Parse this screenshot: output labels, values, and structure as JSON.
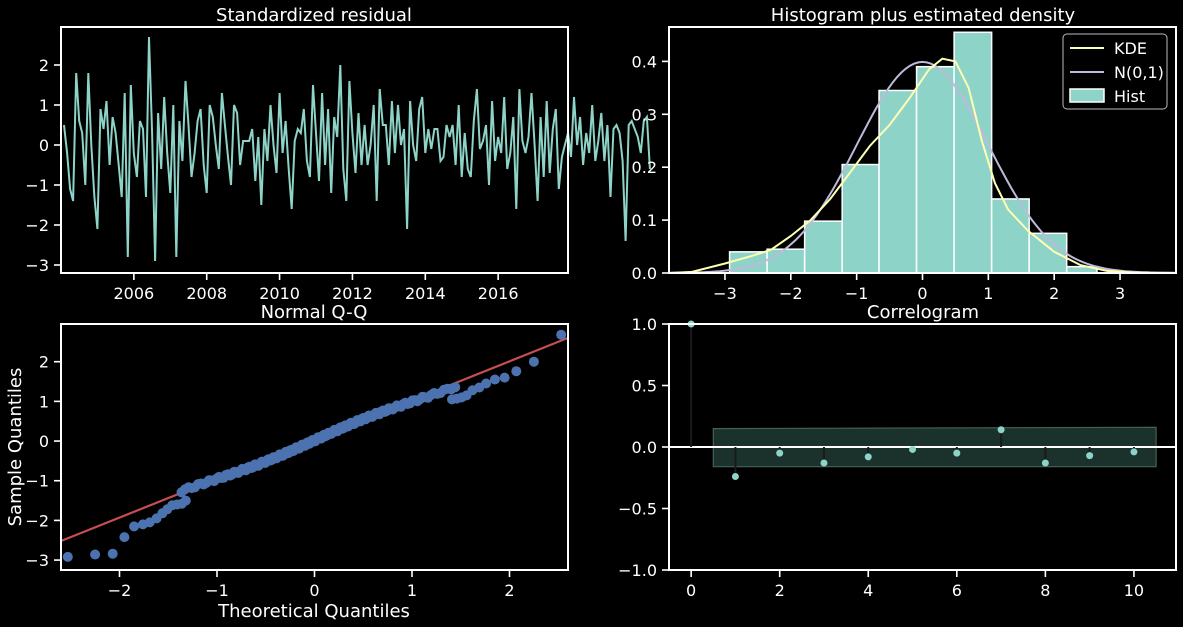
{
  "theme": {
    "background": "#000000",
    "axes_color": "#ffffff",
    "residual_color": "#8dd3c7",
    "hist_color": "#8dd3c7",
    "kde_color": "#ffffb3",
    "normal_color": "#bebada",
    "qq_point_color": "#4c72b0",
    "qq_line_color": "#c44e52",
    "confint_color": "#1f3a34",
    "acf_stem_color": "#1a1a1a",
    "acf_point_color": "#8dd3c7"
  },
  "chart_data": [
    {
      "type": "line",
      "title": "Standardized residual",
      "xlabel": "",
      "ylabel": "",
      "xlim": [
        2004.0,
        2017.917
      ],
      "ylim": [
        -3.2,
        2.95
      ],
      "xticks": [
        2006,
        2008,
        2010,
        2012,
        2014,
        2016
      ],
      "yticks": [
        -3,
        -2,
        -1,
        0,
        1,
        2
      ],
      "x_start": 2004.083,
      "x_step": 0.08333,
      "values": [
        0.5,
        -0.2,
        -1.1,
        -1.4,
        1.8,
        0.6,
        0.3,
        -1.0,
        1.8,
        0.0,
        -1.3,
        -2.1,
        0.9,
        0.4,
        1.1,
        -0.5,
        0.7,
        0.3,
        -0.5,
        -1.3,
        1.3,
        -2.8,
        1.5,
        -0.2,
        -0.8,
        0.6,
        0.4,
        -1.3,
        2.7,
        0.3,
        -2.9,
        0.8,
        -0.6,
        1.2,
        -0.2,
        -1.2,
        1.0,
        -2.8,
        0.6,
        -0.4,
        1.6,
        0.5,
        -0.8,
        -0.2,
        0.6,
        0.9,
        -0.5,
        -1.2,
        1.0,
        0.7,
        0.0,
        -0.6,
        1.3,
        0.5,
        -0.3,
        -1.0,
        1.0,
        0.8,
        -0.5,
        0.1,
        0.1,
        0.1,
        0.4,
        -0.9,
        0.2,
        -1.5,
        0.4,
        -0.4,
        1.0,
        0.0,
        -0.7,
        1.3,
        -0.2,
        0.6,
        -0.6,
        -1.6,
        0.1,
        0.4,
        0.3,
        0.9,
        -0.4,
        -0.8,
        1.5,
        0.3,
        -0.9,
        1.3,
        -0.5,
        0.9,
        -1.2,
        0.7,
        0.2,
        2.0,
        -0.6,
        -1.4,
        1.6,
        0.3,
        -0.7,
        0.8,
        -0.5,
        0.5,
        -0.5,
        0.0,
        1.0,
        -1.4,
        1.4,
        0.5,
        0.5,
        -0.5,
        1.1,
        -0.2,
        1.0,
        0.0,
        0.4,
        -2.1,
        1.1,
        0.0,
        -0.4,
        0.9,
        1.2,
        -0.2,
        0.4,
        -0.1,
        0.4,
        0.4,
        -0.4,
        -0.3,
        0.5,
        0.2,
        0.5,
        -0.5,
        1.0,
        -0.8,
        0.3,
        -0.6,
        -0.8,
        0.6,
        1.4,
        -0.1,
        0.1,
        0.5,
        -1.0,
        1.1,
        -0.4,
        0.2,
        -0.2,
        1.2,
        -0.6,
        -0.2,
        0.7,
        -1.6,
        1.4,
        0.1,
        -0.2,
        0.2,
        1.3,
        0.0,
        -1.4,
        0.7,
        -0.8,
        1.1,
        -0.7,
        0.4,
        0.9,
        -1.1,
        -0.3,
        0.0,
        0.3,
        -0.3,
        1.2,
        0.0,
        0.7,
        -0.5,
        0.3,
        -0.2,
        1.0,
        -0.4,
        0.1,
        0.8,
        -0.4,
        0.5,
        -1.3,
        0.4,
        0.5,
        0.3,
        -0.4,
        -2.4,
        0.5,
        0.6,
        0.4,
        0.2,
        -0.2,
        0.6,
        0.7,
        -0.6
      ]
    },
    {
      "type": "histogram",
      "title": "Histogram plus estimated density",
      "xlim": [
        -3.85,
        3.85
      ],
      "ylim": [
        0,
        0.465
      ],
      "xticks": [
        -3,
        -2,
        -1,
        0,
        1,
        2,
        3
      ],
      "yticks": [
        0.0,
        0.1,
        0.2,
        0.3,
        0.4
      ],
      "ytick_labels": [
        "0.0",
        "0.1",
        "0.2",
        "0.3",
        "0.4"
      ],
      "bin_edges": [
        -2.93,
        -2.36,
        -1.79,
        -1.22,
        -0.66,
        -0.09,
        0.48,
        1.05,
        1.62,
        2.19,
        2.65
      ],
      "densities": [
        0.04,
        0.045,
        0.098,
        0.205,
        0.345,
        0.39,
        0.455,
        0.14,
        0.075,
        0.012
      ],
      "kde": {
        "x": [
          -3.85,
          -3.5,
          -3.0,
          -2.6,
          -2.3,
          -2.0,
          -1.7,
          -1.4,
          -1.1,
          -0.8,
          -0.5,
          -0.2,
          0.1,
          0.3,
          0.5,
          0.7,
          0.9,
          1.1,
          1.3,
          1.6,
          2.0,
          2.4,
          2.8,
          3.2,
          3.85
        ],
        "y": [
          0.0,
          0.002,
          0.018,
          0.032,
          0.044,
          0.07,
          0.1,
          0.14,
          0.19,
          0.24,
          0.28,
          0.33,
          0.385,
          0.405,
          0.4,
          0.35,
          0.25,
          0.17,
          0.12,
          0.08,
          0.04,
          0.015,
          0.004,
          0.001,
          0.0
        ]
      },
      "legend": [
        "KDE",
        "N(0,1)",
        "Hist"
      ],
      "legend_placement": "top-right"
    },
    {
      "type": "scatter",
      "title": "Normal Q-Q",
      "xlabel": "Theoretical Quantiles",
      "ylabel": "Sample Quantiles",
      "xlim": [
        -2.6,
        2.6
      ],
      "ylim": [
        -3.25,
        2.95
      ],
      "xticks": [
        -2,
        -1,
        0,
        1,
        2
      ],
      "yticks": [
        -3,
        -2,
        -1,
        0,
        1,
        2
      ],
      "n_points": 168,
      "low_tail": [
        [
          -2.53,
          -2.92
        ],
        [
          -2.25,
          -2.86
        ],
        [
          -2.07,
          -2.84
        ],
        [
          -1.95,
          -2.42
        ],
        [
          -1.85,
          -2.15
        ],
        [
          -1.76,
          -2.1
        ],
        [
          -1.69,
          -2.05
        ],
        [
          -1.62,
          -1.95
        ],
        [
          -1.56,
          -1.82
        ],
        [
          -1.51,
          -1.72
        ],
        [
          -1.46,
          -1.62
        ],
        [
          -1.41,
          -1.6
        ],
        [
          -1.36,
          -1.58
        ],
        [
          -1.32,
          -1.5
        ]
      ],
      "high_tail": [
        [
          1.41,
          1.05
        ],
        [
          1.46,
          1.07
        ],
        [
          1.51,
          1.1
        ],
        [
          1.56,
          1.15
        ],
        [
          1.62,
          1.28
        ],
        [
          1.69,
          1.35
        ],
        [
          1.76,
          1.45
        ],
        [
          1.85,
          1.55
        ],
        [
          1.95,
          1.6
        ],
        [
          2.07,
          1.76
        ],
        [
          2.25,
          2.0
        ],
        [
          2.53,
          2.68
        ]
      ],
      "reference_line": [
        [
          -2.6,
          -2.52
        ],
        [
          2.6,
          2.6
        ]
      ]
    },
    {
      "type": "stem",
      "title": "Correlogram",
      "xlim": [
        -0.5,
        10.95
      ],
      "ylim": [
        -1.0,
        1.0
      ],
      "xticks": [
        0,
        2,
        4,
        6,
        8,
        10
      ],
      "yticks": [
        -1.0,
        -0.5,
        0.0,
        0.5,
        1.0
      ],
      "ytick_labels": [
        "−1.0",
        "−0.5",
        "0.0",
        "0.5",
        "1.0"
      ],
      "lags": [
        0,
        1,
        2,
        3,
        4,
        5,
        6,
        7,
        8,
        9,
        10
      ],
      "values": [
        1.0,
        -0.24,
        -0.05,
        -0.13,
        -0.08,
        -0.02,
        -0.05,
        0.14,
        -0.13,
        -0.07,
        -0.04
      ],
      "confint_upper": [
        [
          0.5,
          0.15
        ],
        [
          10.5,
          0.16
        ]
      ],
      "confint_lower": [
        [
          0.5,
          -0.16
        ],
        [
          10.5,
          -0.16
        ]
      ]
    }
  ]
}
